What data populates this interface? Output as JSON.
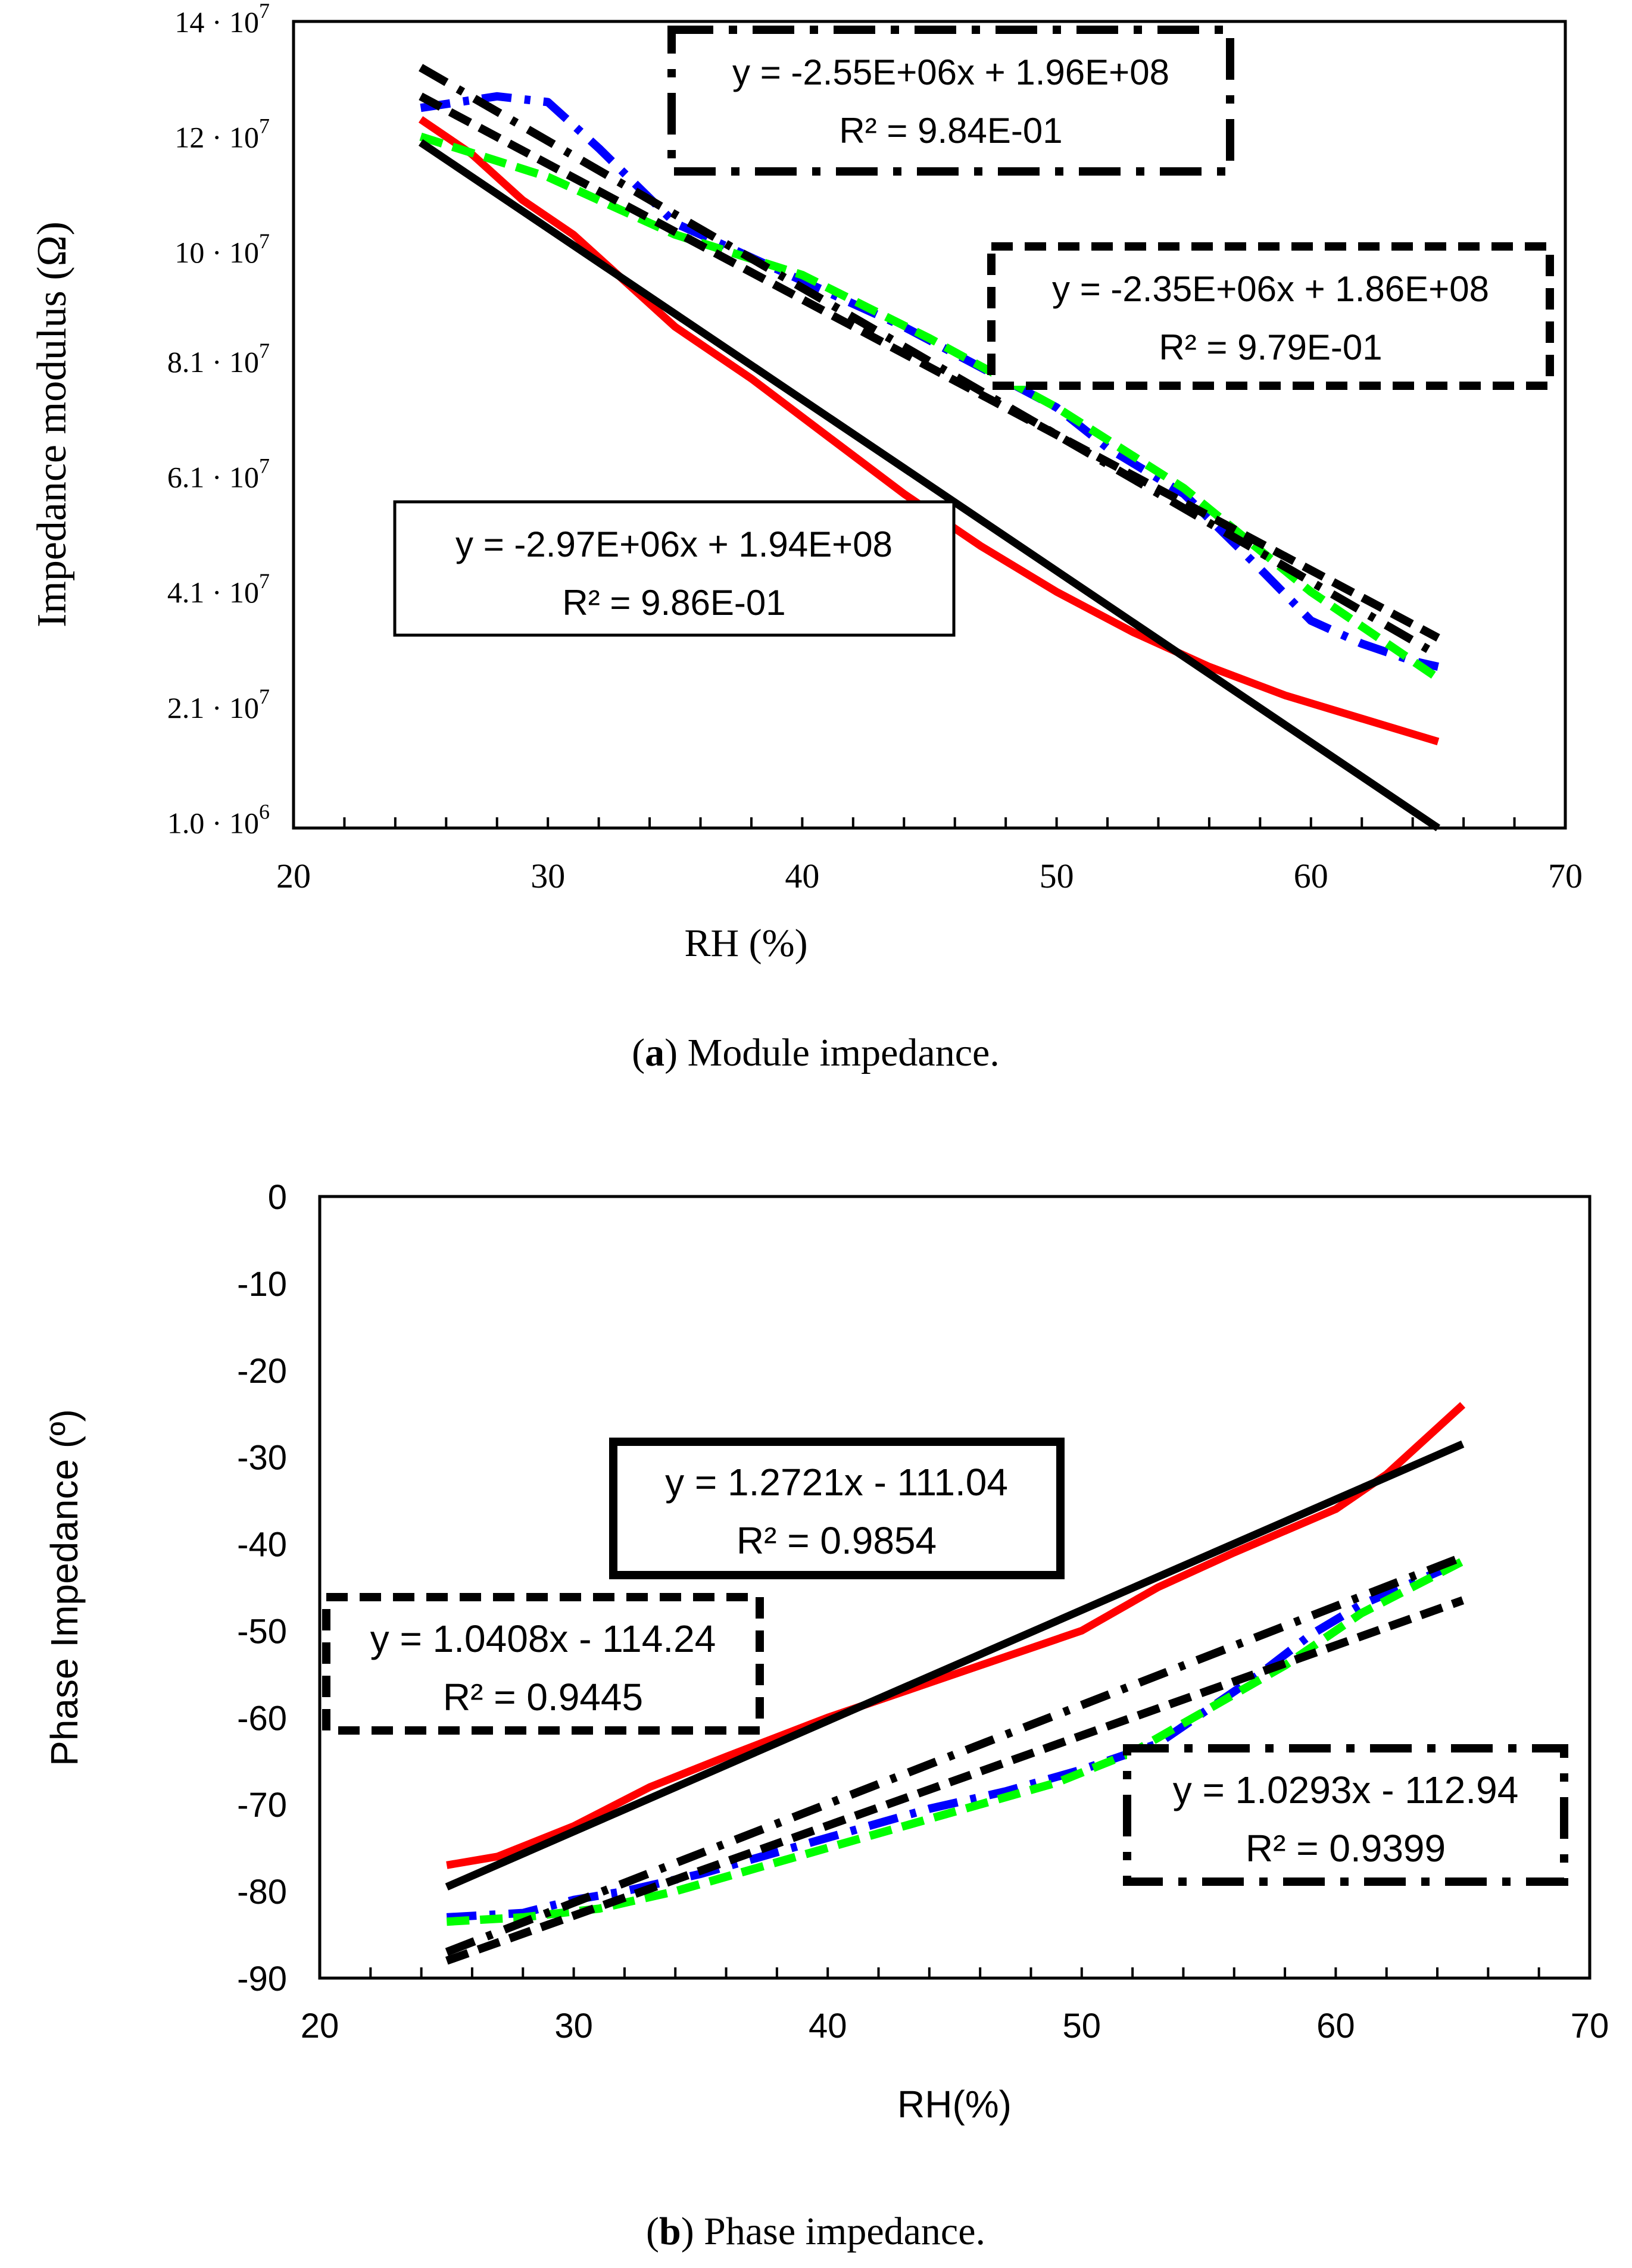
{
  "chart_data": [
    {
      "type": "line",
      "panel_label": "a",
      "caption": "Module impedance.",
      "xlabel": "RH (%)",
      "ylabel": "Impedance modulus (Ω)",
      "xlim": [
        20,
        70
      ],
      "ylim": [
        0,
        140000000.0
      ],
      "x_ticks": [
        20,
        30,
        40,
        50,
        60,
        70
      ],
      "x_tick_labels": [
        "20",
        "30",
        "40",
        "50",
        "60",
        "70"
      ],
      "y_tick_values": [
        140000000.0,
        120000000.0,
        100000000.0,
        81000000.0,
        61000000.0,
        41000000.0,
        21000000.0,
        1000000.0
      ],
      "y_tick_mantissas": [
        "14",
        "12",
        "10",
        "8.1",
        "6.1",
        "4.1",
        "2.1",
        "1.0"
      ],
      "y_tick_exponents": [
        "7",
        "7",
        "7",
        "7",
        "7",
        "7",
        "7",
        "6"
      ],
      "y_tick_base": "10",
      "y_tick_dot": "·",
      "series": [
        {
          "name": "red data",
          "color": "#ff0000",
          "style": "solid",
          "x": [
            25,
            27,
            29,
            31,
            33,
            35,
            38,
            41,
            44,
            47,
            50,
            53,
            56,
            59,
            62,
            65
          ],
          "y": [
            123000000.0,
            117000000.0,
            109000000.0,
            103000000.0,
            95000000.0,
            87000000.0,
            78000000.0,
            68000000.0,
            58000000.0,
            49000000.0,
            41000000.0,
            34000000.0,
            28000000.0,
            23000000.0,
            19000000.0,
            15000000.0
          ]
        },
        {
          "name": "blue data",
          "color": "#0000ff",
          "style": "dashdot",
          "x": [
            25,
            28,
            30,
            32,
            35,
            38,
            41,
            44,
            47,
            50,
            52,
            55,
            58,
            60,
            62,
            64,
            65
          ],
          "y": [
            125000000.0,
            127000000.0,
            126000000.0,
            118000000.0,
            105000000.0,
            99000000.0,
            93000000.0,
            87000000.0,
            80000000.0,
            73000000.0,
            66000000.0,
            58000000.0,
            45000000.0,
            36000000.0,
            32000000.0,
            29000000.0,
            28000000.0
          ]
        },
        {
          "name": "green data",
          "color": "#00ff00",
          "style": "dashed",
          "x": [
            25,
            30,
            35,
            40,
            45,
            50,
            55,
            60,
            65
          ],
          "y": [
            120000000.0,
            113000000.0,
            103000000.0,
            96000000.0,
            85000000.0,
            73000000.0,
            59000000.0,
            41000000.0,
            26000000.0
          ]
        },
        {
          "name": "black dashed trend",
          "color": "#000000",
          "style": "dashed",
          "x": [
            25,
            65
          ],
          "y": [
            127000000.0,
            33000000.0
          ]
        },
        {
          "name": "black dashdot trend",
          "color": "#000000",
          "style": "dashdot",
          "x": [
            25,
            65
          ],
          "y": [
            132000000.0,
            30000000.0
          ]
        },
        {
          "name": "black solid trend",
          "color": "#000000",
          "style": "solid",
          "x": [
            25,
            65
          ],
          "y": [
            119000000.0,
            0
          ]
        }
      ],
      "annotations": [
        {
          "line1": "y = -2.55E+06x + 1.96E+08",
          "line2": "R² = 9.84E-01",
          "border": "dashdot"
        },
        {
          "line1": "y = -2.35E+06x + 1.86E+08",
          "line2": "R² = 9.79E-01",
          "border": "dashed"
        },
        {
          "line1": "y = -2.97E+06x + 1.94E+08",
          "line2": "R² = 9.86E-01",
          "border": "solid"
        }
      ]
    },
    {
      "type": "line",
      "panel_label": "b",
      "caption": "Phase impedance.",
      "xlabel": "RH(%)",
      "ylabel": "Phase Impedance (º)",
      "xlim": [
        20,
        70
      ],
      "ylim": [
        -90,
        0
      ],
      "x_ticks": [
        20,
        30,
        40,
        50,
        60,
        70
      ],
      "x_tick_labels": [
        "20",
        "30",
        "40",
        "50",
        "60",
        "70"
      ],
      "y_ticks": [
        0,
        -10,
        -20,
        -30,
        -40,
        -50,
        -60,
        -70,
        -80,
        -90
      ],
      "y_tick_labels": [
        "0",
        "-10",
        "-20",
        "-30",
        "-40",
        "-50",
        "-60",
        "-70",
        "-80",
        "-90"
      ],
      "series": [
        {
          "name": "red data",
          "color": "#ff0000",
          "style": "solid",
          "x": [
            25,
            27,
            30,
            33,
            36,
            40,
            44,
            48,
            50,
            53,
            56,
            60,
            62,
            65
          ],
          "y": [
            -77,
            -76,
            -72.5,
            -68,
            -64.5,
            -60,
            -56,
            -52,
            -50,
            -45,
            -41,
            -36,
            -32,
            -24
          ]
        },
        {
          "name": "blue data",
          "color": "#0000ff",
          "style": "dashdot",
          "x": [
            25,
            28,
            30,
            32,
            35,
            38,
            41,
            44,
            47,
            50,
            53,
            55,
            57,
            59,
            61,
            63,
            65
          ],
          "y": [
            -83,
            -82.5,
            -81,
            -80,
            -78,
            -75.5,
            -73,
            -70.5,
            -68.5,
            -66,
            -63,
            -59,
            -55,
            -50.5,
            -47,
            -44.5,
            -42
          ]
        },
        {
          "name": "green data",
          "color": "#00ff00",
          "style": "dashed",
          "x": [
            25,
            28,
            31,
            34,
            37,
            40,
            43,
            46,
            49,
            52,
            55,
            58,
            61,
            63,
            65
          ],
          "y": [
            -83.5,
            -83,
            -82,
            -80,
            -77.5,
            -75,
            -72.5,
            -70,
            -67.5,
            -64,
            -59,
            -54,
            -48,
            -45,
            -42
          ]
        },
        {
          "name": "black dashed trend",
          "color": "#000000",
          "style": "dashed",
          "x": [
            25,
            65
          ],
          "y": [
            -88,
            -46.5
          ]
        },
        {
          "name": "black dashdot trend",
          "color": "#000000",
          "style": "dashdot",
          "x": [
            25,
            65
          ],
          "y": [
            -87,
            -41.5
          ]
        },
        {
          "name": "black solid trend",
          "color": "#000000",
          "style": "solid",
          "x": [
            25,
            65
          ],
          "y": [
            -79.5,
            -28.5
          ]
        }
      ],
      "annotations": [
        {
          "line1": "y = 1.2721x - 111.04",
          "line2": "R² = 0.9854",
          "border": "solid"
        },
        {
          "line1": "y = 1.0408x - 114.24",
          "line2": "R² = 0.9445",
          "border": "dashed"
        },
        {
          "line1": "y = 1.0293x - 112.94",
          "line2": "R² = 0.9399",
          "border": "dashdot"
        }
      ]
    }
  ]
}
